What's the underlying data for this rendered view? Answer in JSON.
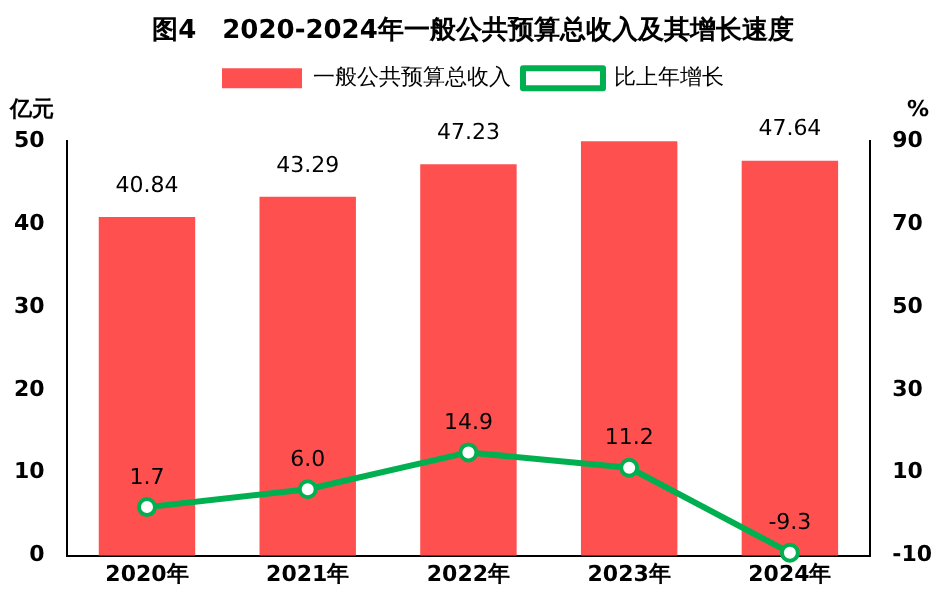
{
  "chart_data": {
    "type": "bar",
    "title": "图4　2020-2024年一般公共预算总收入及其增长速度",
    "ylabel": "亿元",
    "y2label": "%",
    "categories": [
      "2020年",
      "2021年",
      "2022年",
      "2023年",
      "2024年"
    ],
    "series": [
      {
        "name": "一般公共预算总收入",
        "color": "#ff5050",
        "values": [
          40.84,
          43.29,
          47.23,
          50,
          47.64
        ],
        "value_labels": [
          "40.84",
          "43.29",
          "47.23",
          null,
          "47.64"
        ]
      },
      {
        "name": "比上年增长",
        "type": "line",
        "axis": "y2",
        "color": "#00b050",
        "marker": "circle",
        "values": [
          1.7,
          6.0,
          14.9,
          11.2,
          -9.3
        ],
        "value_labels": [
          "1.7",
          "6.0",
          "14.9",
          "11.2",
          "-9.3"
        ]
      }
    ],
    "ylim": [
      0,
      50
    ],
    "yticks": [
      0,
      10,
      20,
      30,
      40,
      50
    ],
    "y2lim": [
      -10,
      90
    ],
    "y2ticks": [
      -10,
      10,
      30,
      50,
      70,
      90
    ],
    "legend": "top",
    "grid": false
  }
}
